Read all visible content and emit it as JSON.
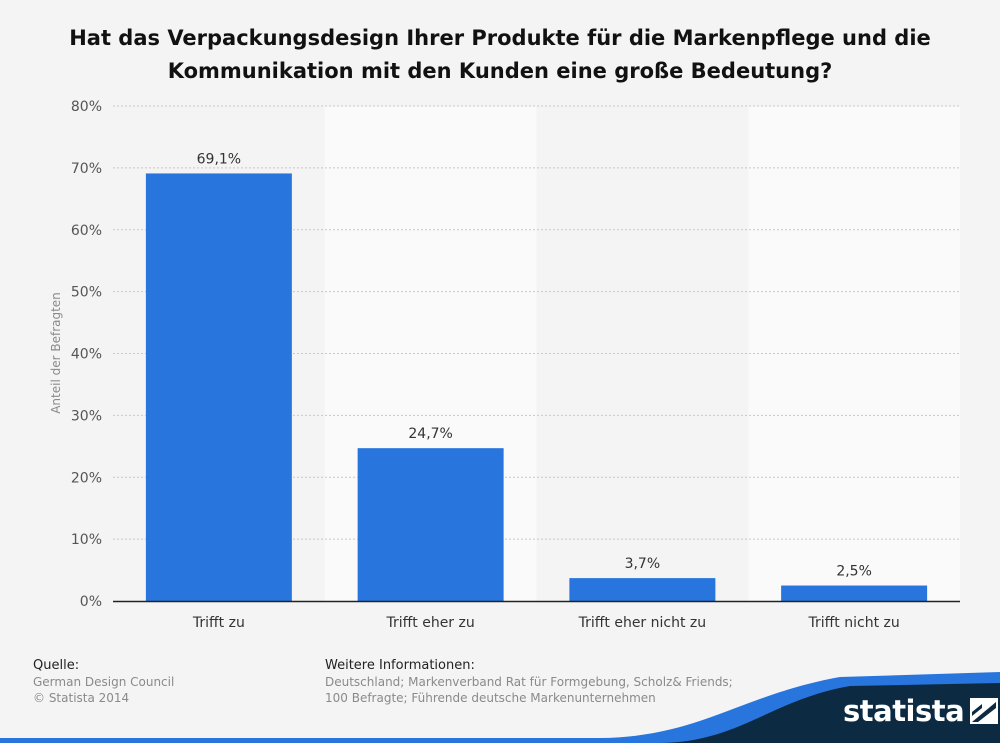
{
  "title_lines": [
    "Hat das Verpackungsdesign Ihrer Produkte für die Markenpflege und die",
    "Kommunikation mit den Kunden eine große Bedeutung?"
  ],
  "chart_data": {
    "type": "bar",
    "categories": [
      "Trifft zu",
      "Trifft eher zu",
      "Trifft eher nicht zu",
      "Trifft nicht zu"
    ],
    "values": [
      69.1,
      24.7,
      3.7,
      2.5
    ],
    "value_labels": [
      "69,1%",
      "24,7%",
      "3,7%",
      "2,5%"
    ],
    "ylabel": "Anteil der Befragten",
    "ylim": [
      0,
      80
    ],
    "yticks": [
      0,
      10,
      20,
      30,
      40,
      50,
      60,
      70,
      80
    ],
    "ytick_labels": [
      "0%",
      "10%",
      "20%",
      "30%",
      "40%",
      "50%",
      "60%",
      "70%",
      "80%"
    ],
    "bar_color": "#2876dd",
    "grid": true
  },
  "footer": {
    "source_heading": "Quelle:",
    "source_lines": [
      "German Design Council",
      "© Statista 2014"
    ],
    "info_heading": "Weitere Informationen:",
    "info_lines": [
      "Deutschland; Markenverband Rat für Formgebung, Scholz& Friends;",
      "100 Befragte; Führende deutsche Markenunternehmen"
    ]
  },
  "brand": {
    "logo_text": "statista",
    "dark_color": "#0d2a43",
    "accent_color": "#2876dd"
  }
}
